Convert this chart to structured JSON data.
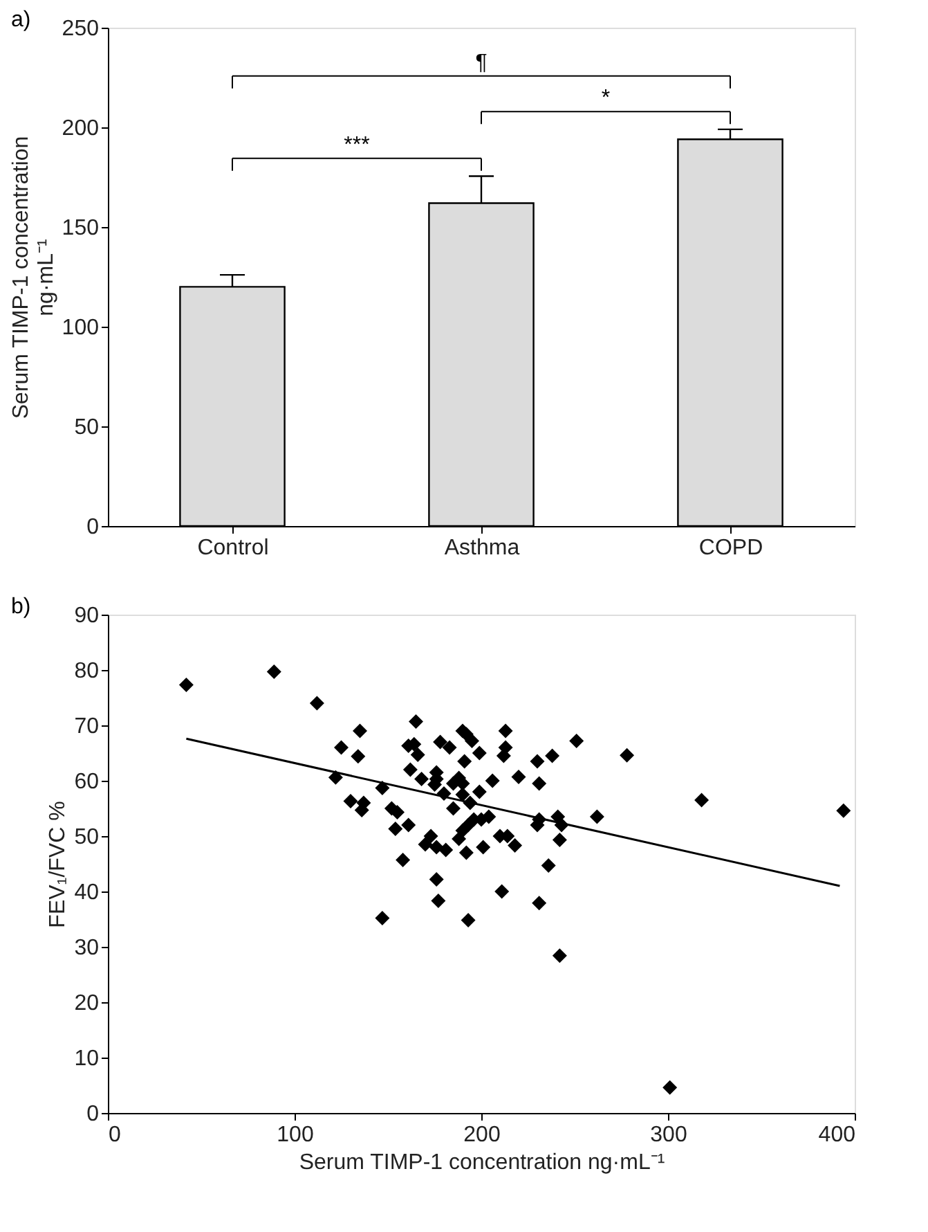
{
  "chart_data": [
    {
      "type": "bar",
      "title": "a)",
      "ylabel": "Serum TIMP-1 concentration ng·mL⁻¹",
      "categories": [
        "Control",
        "Asthma",
        "COPD"
      ],
      "values": [
        120,
        162,
        194
      ],
      "color": "#dcdcdc",
      "errors": [
        [
          120,
          126
        ],
        [
          162,
          175.5
        ],
        [
          194,
          199
        ]
      ],
      "ylim": [
        0,
        250
      ],
      "yticks": [
        0,
        50,
        100,
        150,
        200,
        250
      ],
      "grid": false,
      "annotations": [
        "***",
        "*",
        "¶"
      ]
    },
    {
      "type": "scatter",
      "title": "b)",
      "xlabel": "Serum TIMP-1 concentration ng·mL⁻¹",
      "ylabel": "FEV₁/FVC %",
      "marker": "diamond",
      "grid": false,
      "xlim": [
        0,
        400
      ],
      "xticks": [
        0,
        100,
        200,
        300,
        400
      ],
      "ylim": [
        0,
        90
      ],
      "yticks": [
        0,
        10,
        20,
        30,
        40,
        50,
        60,
        70,
        80,
        90
      ],
      "series": [
        {
          "type": "scatter",
          "color": "#000000",
          "x": [
            42,
            89,
            112,
            125,
            122,
            135,
            134,
            130,
            137,
            136,
            147,
            152,
            155,
            154,
            161,
            164,
            166,
            165,
            162,
            161,
            158,
            168,
            175,
            176,
            173,
            176,
            177,
            147,
            178,
            180,
            188,
            185,
            190,
            183,
            176,
            190,
            192,
            195,
            199,
            191,
            190,
            199,
            206,
            213,
            213,
            212,
            220,
            230,
            238,
            231,
            251,
            278,
            318,
            394,
            194,
            196,
            193,
            190,
            200,
            204,
            201,
            210,
            214,
            218,
            185,
            176,
            170,
            192,
            193,
            211,
            231,
            230,
            241,
            243,
            242,
            236,
            262,
            231,
            242,
            301,
            181,
            188
          ],
          "values": [
            77.3,
            79.7,
            74,
            66,
            60.6,
            69,
            64.4,
            56.3,
            56,
            54.7,
            58.7,
            55,
            54.3,
            51.3,
            66.3,
            66.6,
            64.7,
            70.7,
            62,
            52,
            45.7,
            60.3,
            59.3,
            61.5,
            50,
            42.2,
            38.3,
            35.2,
            67,
            57.7,
            60.5,
            59.5,
            57.5,
            66,
            60.3,
            69,
            68.4,
            67.2,
            65,
            63.5,
            59.5,
            58,
            60,
            69,
            66,
            64.5,
            60.7,
            63.5,
            64.5,
            59.5,
            67.2,
            64.6,
            56.5,
            54.6,
            56,
            53,
            52,
            51,
            53,
            53.5,
            48,
            50,
            50,
            48.3,
            55,
            48,
            48.5,
            47,
            34.8,
            40,
            53,
            52,
            53.5,
            52,
            49.3,
            44.7,
            53.5,
            37.9,
            28.4,
            4.6,
            47.5,
            49.5
          ]
        },
        {
          "type": "line",
          "color": "#000000",
          "marker": "none",
          "x": [
            42,
            392
          ],
          "values": [
            67.6,
            41
          ]
        }
      ]
    }
  ]
}
